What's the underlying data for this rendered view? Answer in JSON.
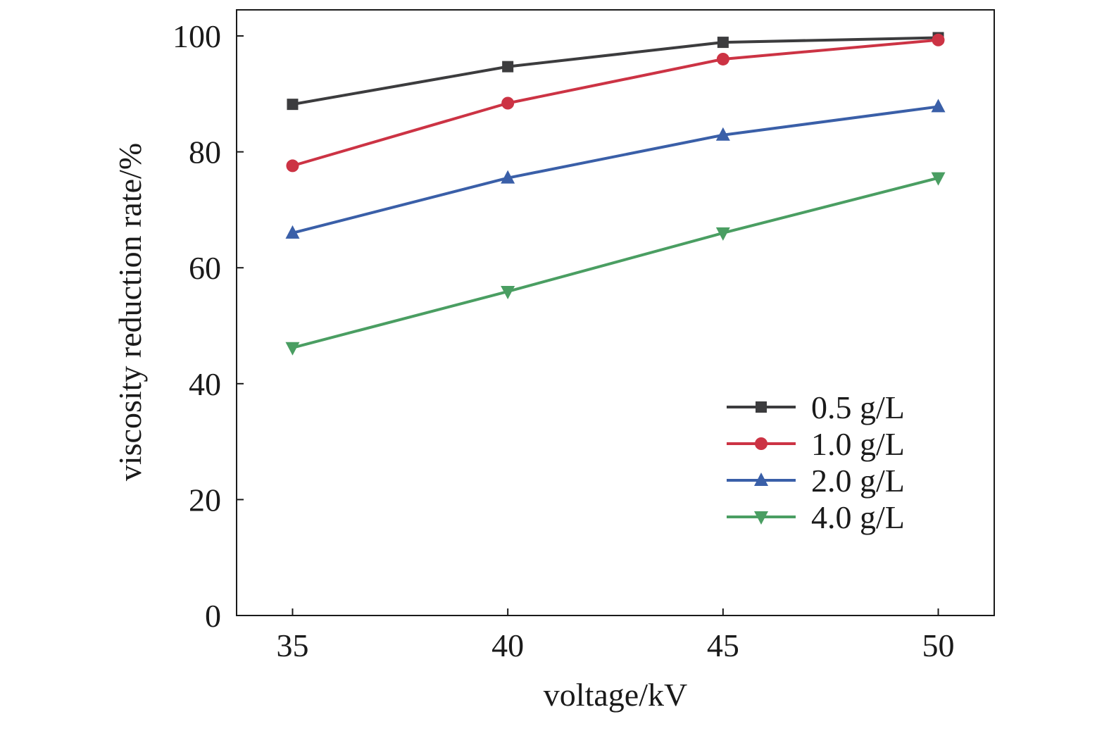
{
  "chart_data": {
    "type": "line",
    "title": "",
    "xlabel": "voltage/kV",
    "ylabel": "viscosity reduction rate/%",
    "x": [
      35,
      40,
      45,
      50
    ],
    "x_ticks": [
      "35",
      "40",
      "45",
      "50"
    ],
    "y_ticks": [
      "0",
      "20",
      "40",
      "60",
      "80",
      "100"
    ],
    "xlim": [
      33.7,
      51.3
    ],
    "ylim": [
      0,
      104.5
    ],
    "grid": false,
    "legend_position": "lower-right",
    "series": [
      {
        "name": "0.5 g/L",
        "values": [
          88.2,
          94.7,
          98.9,
          99.7
        ],
        "color": "#3c3c3e",
        "marker": "square"
      },
      {
        "name": "1.0 g/L",
        "values": [
          77.6,
          88.4,
          96.0,
          99.3
        ],
        "color": "#cc3344",
        "marker": "circle"
      },
      {
        "name": "2.0 g/L",
        "values": [
          66.0,
          75.5,
          82.9,
          87.8
        ],
        "color": "#3a5fa8",
        "marker": "triangle-up"
      },
      {
        "name": "4.0 g/L",
        "values": [
          46.2,
          55.9,
          66.0,
          75.5
        ],
        "color": "#4a9e62",
        "marker": "triangle-down"
      }
    ]
  }
}
